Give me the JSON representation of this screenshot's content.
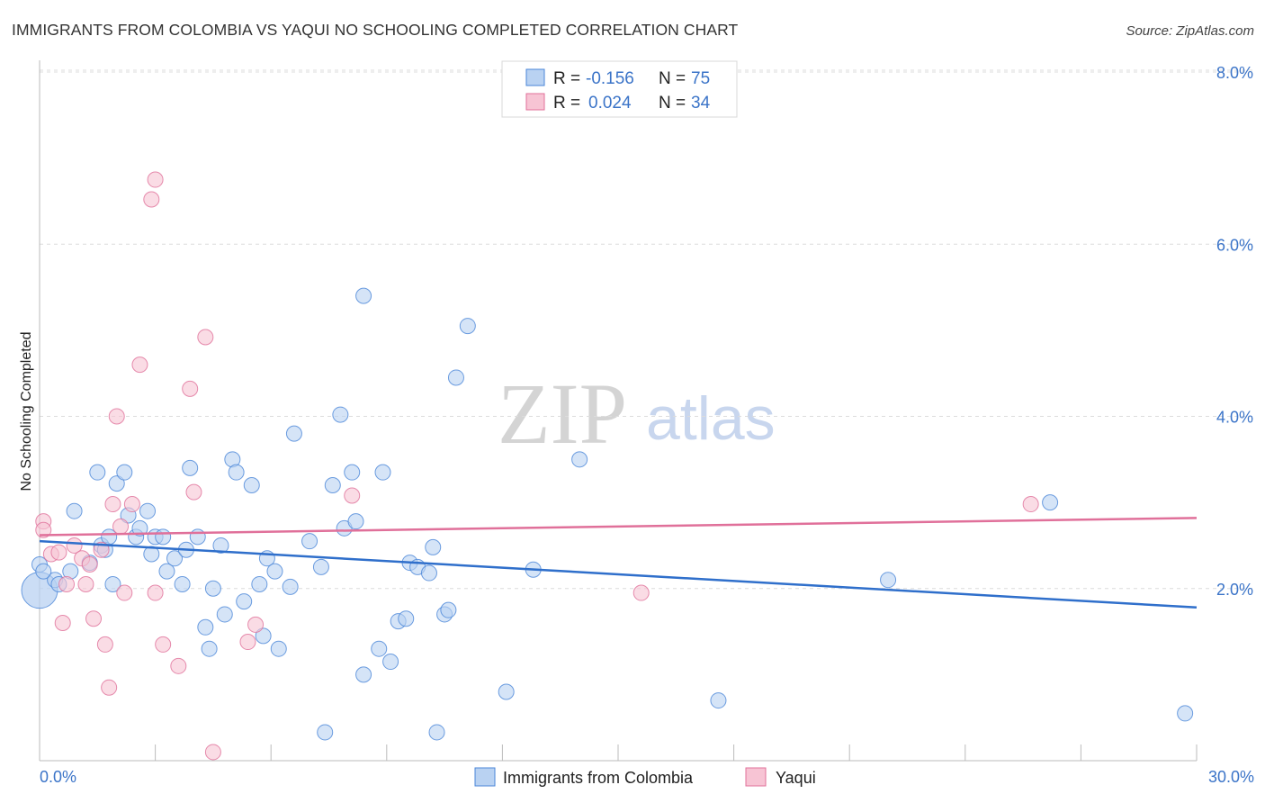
{
  "chart_data": {
    "type": "scatter",
    "title": "IMMIGRANTS FROM COLOMBIA VS YAQUI NO SCHOOLING COMPLETED CORRELATION CHART",
    "source": "Source: ZipAtlas.com",
    "ylabel": "No Schooling Completed",
    "x_tick_labels": [
      "0.0%",
      "30.0%"
    ],
    "y_tick_labels": [
      "2.0%",
      "4.0%",
      "6.0%",
      "8.0%"
    ],
    "y_ticks": [
      2,
      4,
      6,
      8
    ],
    "xlim": [
      0,
      30
    ],
    "ylim": [
      0,
      8
    ],
    "grid": true,
    "watermark": {
      "zip": "ZIP",
      "atlas": "atlas"
    },
    "legend": {
      "placement": "top-center",
      "rows": [
        {
          "r_label": "R =",
          "r_value": "-0.156",
          "n_label": "N =",
          "n_value": "75"
        },
        {
          "r_label": "R =",
          "r_value": "0.024",
          "n_label": "N =",
          "n_value": "34"
        }
      ]
    },
    "series": [
      {
        "name": "Immigrants from Colombia",
        "color": "#4a86d8",
        "fill": "#b9d2f2",
        "trend": [
          [
            0,
            2.55
          ],
          [
            30,
            1.78
          ]
        ],
        "points": [
          [
            0.0,
            1.98
          ],
          [
            0.0,
            2.28
          ],
          [
            0.4,
            2.1
          ],
          [
            0.5,
            2.05
          ],
          [
            0.8,
            2.2
          ],
          [
            0.9,
            2.9
          ],
          [
            1.3,
            2.3
          ],
          [
            1.5,
            3.35
          ],
          [
            1.6,
            2.5
          ],
          [
            1.7,
            2.45
          ],
          [
            1.8,
            2.6
          ],
          [
            1.9,
            2.05
          ],
          [
            2.0,
            3.22
          ],
          [
            2.2,
            3.35
          ],
          [
            2.3,
            2.85
          ],
          [
            2.5,
            2.6
          ],
          [
            2.6,
            2.7
          ],
          [
            2.8,
            2.9
          ],
          [
            2.9,
            2.4
          ],
          [
            3.0,
            2.6
          ],
          [
            3.2,
            2.6
          ],
          [
            3.3,
            2.2
          ],
          [
            3.5,
            2.35
          ],
          [
            3.7,
            2.05
          ],
          [
            3.8,
            2.45
          ],
          [
            3.9,
            3.4
          ],
          [
            4.1,
            2.6
          ],
          [
            4.3,
            1.55
          ],
          [
            4.4,
            1.3
          ],
          [
            4.5,
            2.0
          ],
          [
            4.7,
            2.5
          ],
          [
            4.8,
            1.7
          ],
          [
            5.0,
            3.5
          ],
          [
            5.1,
            3.35
          ],
          [
            5.3,
            1.85
          ],
          [
            5.5,
            3.2
          ],
          [
            5.7,
            2.05
          ],
          [
            5.8,
            1.45
          ],
          [
            5.9,
            2.35
          ],
          [
            6.1,
            2.2
          ],
          [
            6.2,
            1.3
          ],
          [
            6.5,
            2.02
          ],
          [
            6.6,
            3.8
          ],
          [
            7.0,
            2.55
          ],
          [
            7.3,
            2.25
          ],
          [
            7.4,
            0.33
          ],
          [
            7.6,
            3.2
          ],
          [
            7.8,
            4.02
          ],
          [
            7.9,
            2.7
          ],
          [
            8.1,
            3.35
          ],
          [
            8.2,
            2.78
          ],
          [
            8.4,
            1.0
          ],
          [
            8.4,
            5.4
          ],
          [
            8.8,
            1.3
          ],
          [
            8.9,
            3.35
          ],
          [
            9.1,
            1.15
          ],
          [
            9.3,
            1.62
          ],
          [
            9.5,
            1.65
          ],
          [
            9.6,
            2.3
          ],
          [
            9.8,
            2.25
          ],
          [
            10.1,
            2.18
          ],
          [
            10.2,
            2.48
          ],
          [
            10.3,
            0.33
          ],
          [
            10.5,
            1.7
          ],
          [
            10.6,
            1.75
          ],
          [
            10.8,
            4.45
          ],
          [
            11.1,
            5.05
          ],
          [
            12.1,
            0.8
          ],
          [
            12.8,
            2.22
          ],
          [
            14.0,
            3.5
          ],
          [
            17.6,
            0.7
          ],
          [
            22.0,
            2.1
          ],
          [
            26.2,
            3.0
          ],
          [
            29.7,
            0.55
          ],
          [
            0.1,
            2.2
          ]
        ]
      },
      {
        "name": "Yaqui",
        "color": "#e0709a",
        "fill": "#f7c4d4",
        "trend": [
          [
            0,
            2.62
          ],
          [
            30,
            2.82
          ]
        ],
        "points": [
          [
            0.1,
            2.78
          ],
          [
            0.1,
            2.68
          ],
          [
            0.3,
            2.4
          ],
          [
            0.5,
            2.42
          ],
          [
            0.6,
            1.6
          ],
          [
            0.7,
            2.05
          ],
          [
            0.9,
            2.5
          ],
          [
            1.1,
            2.35
          ],
          [
            1.2,
            2.05
          ],
          [
            1.3,
            2.28
          ],
          [
            1.4,
            1.65
          ],
          [
            1.6,
            2.45
          ],
          [
            1.7,
            1.35
          ],
          [
            1.8,
            0.85
          ],
          [
            1.9,
            2.98
          ],
          [
            2.0,
            4.0
          ],
          [
            2.1,
            2.72
          ],
          [
            2.2,
            1.95
          ],
          [
            2.4,
            2.98
          ],
          [
            2.6,
            4.6
          ],
          [
            2.9,
            6.52
          ],
          [
            3.0,
            6.75
          ],
          [
            3.0,
            1.95
          ],
          [
            3.2,
            1.35
          ],
          [
            3.6,
            1.1
          ],
          [
            3.9,
            4.32
          ],
          [
            4.0,
            3.12
          ],
          [
            4.3,
            4.92
          ],
          [
            4.5,
            0.1
          ],
          [
            5.4,
            1.38
          ],
          [
            5.6,
            1.58
          ],
          [
            8.1,
            3.08
          ],
          [
            15.6,
            1.95
          ],
          [
            25.7,
            2.98
          ]
        ]
      }
    ]
  }
}
